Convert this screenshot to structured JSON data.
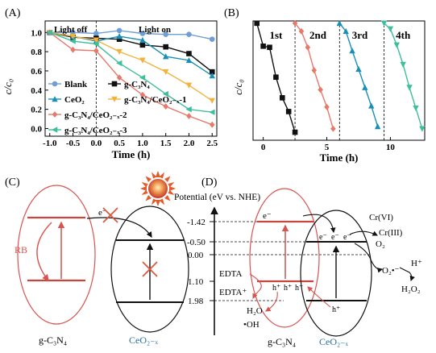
{
  "panels": {
    "A": {
      "label": "(A)",
      "light_off": "Light off",
      "light_on": "Light on"
    },
    "B": {
      "label": "(B)"
    },
    "C": {
      "label": "(C)",
      "rb": "RB",
      "electron": "e⁻",
      "material_left": "g-C₃N₄",
      "material_right": "CeO₂₋ₓ"
    },
    "D": {
      "label": "(D)",
      "potential_title": "Potential (eV vs. NHE)",
      "ticks": [
        "-1.42",
        "-0.50",
        "0.00",
        "1.10",
        "1.98"
      ],
      "electron": "e⁻",
      "hole": "h⁺",
      "cr6": "Cr(VI)",
      "cr3": "Cr(III)",
      "o2": "O₂",
      "o2_radical": "O₂•⁻",
      "h_plus": "H⁺",
      "h2o2": "H₂O₂",
      "edta": "EDTA",
      "edta_plus": "EDTA⁺",
      "h2o": "H₂O",
      "oh": "•OH",
      "material_left": "g-C₃N₄",
      "material_right": "CeO₂₋ₓ"
    }
  },
  "chart_data": [
    {
      "type": "line",
      "xlabel": "Time (h)",
      "ylabel": "c/c₀",
      "xlim": [
        -1.1,
        2.6
      ],
      "ylim": [
        -0.08,
        1.12
      ],
      "x_ticks": [
        "-1.0",
        "-0.5",
        "0.0",
        "0.5",
        "1.0",
        "1.5",
        "2.0",
        "2.5"
      ],
      "y_ticks": [
        "0.0",
        "0.2",
        "0.4",
        "0.6",
        "0.8",
        "1.0"
      ],
      "x": [
        -1.0,
        -0.5,
        0.0,
        0.5,
        1.0,
        1.5,
        2.0,
        2.5
      ],
      "series": [
        {
          "name": "Blank",
          "color": "#6f9ed6",
          "marker": "circle",
          "values": [
            1.0,
            1.0,
            0.99,
            1.02,
            0.99,
            0.98,
            0.98,
            0.93
          ]
        },
        {
          "name": "g-C₃N₄",
          "color": "#111111",
          "marker": "square",
          "values": [
            1.0,
            0.95,
            0.94,
            0.93,
            0.87,
            0.85,
            0.78,
            0.59
          ]
        },
        {
          "name": "CeO₂",
          "color": "#1a8fb5",
          "marker": "triangle",
          "values": [
            1.0,
            0.96,
            0.91,
            0.96,
            0.92,
            0.75,
            0.71,
            0.55
          ]
        },
        {
          "name": "g-C₃N₄/CeO₂₋ₓ-1",
          "color": "#f2b33d",
          "marker": "triangle-down",
          "values": [
            1.0,
            0.96,
            0.92,
            0.8,
            0.71,
            0.59,
            0.45,
            0.29
          ]
        },
        {
          "name": "g-C₃N₄/CeO₂₋ₓ-2",
          "color": "#e8786a",
          "marker": "diamond",
          "values": [
            1.0,
            0.82,
            0.81,
            0.53,
            0.35,
            0.23,
            0.13,
            0.04
          ]
        },
        {
          "name": "g-C₃N₄/CeO₂₋ₓ-3",
          "color": "#3cbf9a",
          "marker": "triangle-left",
          "values": [
            1.0,
            0.91,
            0.88,
            0.68,
            0.53,
            0.36,
            0.2,
            0.17
          ]
        }
      ]
    },
    {
      "type": "line",
      "xlabel": "Time (h)",
      "ylabel": "c/c₀",
      "xlim": [
        -0.8,
        12.7
      ],
      "ylim": [
        -0.02,
        1.02
      ],
      "x_ticks": [
        "0",
        "5",
        "10"
      ],
      "cycle_labels": [
        "1st",
        "2nd",
        "3rd",
        "4th"
      ],
      "cycle_separators": [
        2.5,
        6.0,
        9.5
      ],
      "series": [
        {
          "name": "1st",
          "color": "#111111",
          "marker": "square",
          "x": [
            -0.5,
            0.0,
            0.5,
            1.0,
            1.5,
            2.0,
            2.5
          ],
          "values": [
            1.0,
            0.8,
            0.79,
            0.53,
            0.35,
            0.23,
            0.05
          ]
        },
        {
          "name": "2nd",
          "color": "#e8786a",
          "marker": "diamond",
          "x": [
            2.5,
            3.0,
            3.5,
            4.0,
            4.5,
            5.0,
            5.5
          ],
          "values": [
            1.0,
            0.93,
            0.79,
            0.59,
            0.42,
            0.27,
            0.08
          ]
        },
        {
          "name": "3rd",
          "color": "#1a8fb5",
          "marker": "triangle",
          "x": [
            6.0,
            6.5,
            7.0,
            7.5,
            8.0,
            8.5,
            9.0
          ],
          "values": [
            1.0,
            0.93,
            0.76,
            0.6,
            0.44,
            0.28,
            0.1
          ]
        },
        {
          "name": "4th",
          "color": "#3cbf9a",
          "marker": "triangle-down",
          "x": [
            9.5,
            10.0,
            10.5,
            11.0,
            11.5,
            12.0,
            12.5
          ],
          "values": [
            1.0,
            0.95,
            0.81,
            0.64,
            0.44,
            0.26,
            0.08
          ]
        }
      ]
    }
  ]
}
